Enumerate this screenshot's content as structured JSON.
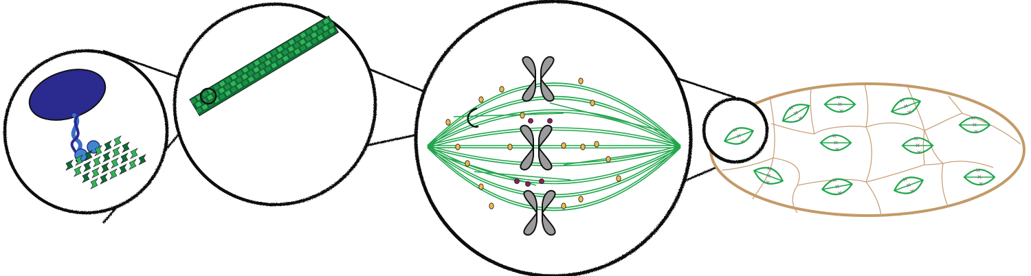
{
  "colors": {
    "outline": "#111111",
    "motor_head": "#2a2a8f",
    "motor_neck": "#3a6fc4",
    "motor_feet": "#3f86d1",
    "tubulin_light": "#34b25a",
    "tubulin_dark": "#0e6b35",
    "spindle_fiber": "#21a64d",
    "chromosome": "#9b9b9b",
    "kinetochore_dot": "#f2b84b",
    "midzone_dot": "#8a1f5a",
    "embryo_outline": "#c49a68",
    "cell_wall": "#c9a07a"
  },
  "panels": [
    {
      "name": "motor-protein-magnified",
      "icon": "kinesin-on-microtubule-icon"
    },
    {
      "name": "microtubule-magnified",
      "icon": "microtubule-icon"
    },
    {
      "name": "mitotic-spindle-magnified",
      "icon": "spindle-icon"
    },
    {
      "name": "embryo-overview",
      "icon": "dividing-embryo-icon"
    }
  ]
}
